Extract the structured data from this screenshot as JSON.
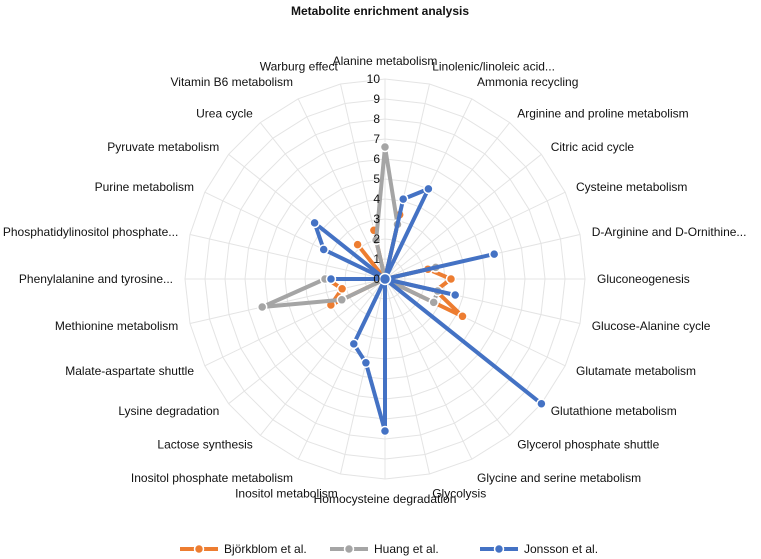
{
  "chart_data": {
    "type": "radar",
    "title": "Metabolite enrichment analysis",
    "rmin": 0,
    "rmax": 10,
    "ticks": [
      "0",
      "1",
      "2",
      "3",
      "4",
      "5",
      "6",
      "7",
      "8",
      "9",
      "10"
    ],
    "categories": [
      "Alanine metabolism",
      "Linolenic/linoleic acid...",
      "Ammonia recycling",
      "Arginine and proline metabolism",
      "Citric acid cycle",
      "Cysteine metabolism",
      "D-Arginine and D-Ornithine...",
      "Gluconeogenesis",
      "Glucose-Alanine cycle",
      "Glutamate metabolism",
      "Glutathione metabolism",
      "Glycerol phosphate shuttle",
      "Glycine and serine metabolism",
      "Glycolysis",
      "Homocysteine degradation",
      "Inositol metabolism",
      "Inositol phosphate metabolism",
      "Lactose synthesis",
      "Lysine degradation",
      "Malate-aspartate shuttle",
      "Methionine metabolism",
      "Phenylalanine and tyrosine...",
      "Phosphatidylinositol phosphate...",
      "Purine metabolism",
      "Pyruvate metabolism",
      "Urea cycle",
      "Vitamin B6 metabolism",
      "Warburg effect"
    ],
    "series": [
      {
        "name": "Björkblom et al.",
        "color": "#ED7D31",
        "values": [
          0,
          3.3,
          0,
          0,
          0,
          0,
          2.2,
          3.3,
          2.6,
          4.3,
          0,
          0,
          0,
          0,
          0,
          0,
          0,
          0,
          0,
          3.0,
          2.2,
          2.9,
          0,
          0,
          0,
          2.2,
          0,
          2.5
        ]
      },
      {
        "name": "Huang et al.",
        "color": "#A5A5A5",
        "values": [
          6.6,
          2.8,
          0,
          0,
          0,
          0,
          2.6,
          0,
          2.7,
          2.7,
          0,
          0,
          0,
          0,
          0,
          0,
          0,
          0,
          0,
          2.4,
          6.3,
          3.0,
          0,
          0,
          0,
          0,
          0,
          2.0
        ]
      },
      {
        "name": "Jonsson et al.",
        "color": "#4472C4",
        "values": [
          0,
          4.1,
          5.0,
          0,
          0,
          0,
          5.6,
          0,
          3.6,
          0,
          10.0,
          0,
          0,
          0,
          7.6,
          4.3,
          3.6,
          0,
          0,
          0,
          0,
          2.7,
          0,
          3.4,
          4.5,
          0,
          0,
          0
        ]
      }
    ],
    "grid": true,
    "legend_position": "bottom"
  }
}
